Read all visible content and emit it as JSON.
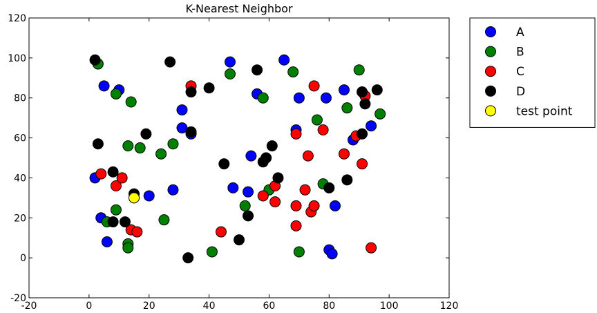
{
  "chart_data": {
    "type": "scatter",
    "title": "K-Nearest Neighbor",
    "xlabel": "",
    "ylabel": "",
    "xlim": [
      -20,
      120
    ],
    "ylim": [
      -20,
      120
    ],
    "xticks": [
      -20,
      0,
      20,
      40,
      60,
      80,
      100,
      120
    ],
    "yticks": [
      -20,
      0,
      20,
      40,
      60,
      80,
      100,
      120
    ],
    "grid": false,
    "legend_position": "outside-right-top",
    "series": [
      {
        "name": "A",
        "color": "#0000ff",
        "points": [
          [
            47,
            98
          ],
          [
            65,
            99
          ],
          [
            5,
            86
          ],
          [
            10,
            84
          ],
          [
            56,
            82
          ],
          [
            79,
            80
          ],
          [
            70,
            80
          ],
          [
            85,
            84
          ],
          [
            31,
            74
          ],
          [
            31,
            65
          ],
          [
            34,
            62
          ],
          [
            69,
            64
          ],
          [
            94,
            66
          ],
          [
            88,
            59
          ],
          [
            54,
            51
          ],
          [
            2,
            40
          ],
          [
            20,
            31
          ],
          [
            28,
            34
          ],
          [
            48,
            35
          ],
          [
            53,
            33
          ],
          [
            4,
            20
          ],
          [
            6,
            8
          ],
          [
            82,
            26
          ],
          [
            80,
            4
          ],
          [
            81,
            2
          ]
        ]
      },
      {
        "name": "B",
        "color": "#008000",
        "points": [
          [
            3,
            97
          ],
          [
            47,
            92
          ],
          [
            68,
            93
          ],
          [
            90,
            94
          ],
          [
            9,
            82
          ],
          [
            14,
            78
          ],
          [
            58,
            80
          ],
          [
            86,
            75
          ],
          [
            97,
            72
          ],
          [
            76,
            69
          ],
          [
            13,
            56
          ],
          [
            17,
            55
          ],
          [
            24,
            52
          ],
          [
            28,
            57
          ],
          [
            59,
            50
          ],
          [
            60,
            34
          ],
          [
            78,
            37
          ],
          [
            52,
            26
          ],
          [
            9,
            24
          ],
          [
            6,
            18
          ],
          [
            25,
            19
          ],
          [
            13,
            7
          ],
          [
            13,
            5
          ],
          [
            41,
            3
          ],
          [
            70,
            3
          ]
        ]
      },
      {
        "name": "C",
        "color": "#ff0000",
        "points": [
          [
            34,
            86
          ],
          [
            75,
            86
          ],
          [
            92,
            81
          ],
          [
            89,
            61
          ],
          [
            78,
            64
          ],
          [
            69,
            62
          ],
          [
            73,
            51
          ],
          [
            85,
            52
          ],
          [
            91,
            47
          ],
          [
            4,
            42
          ],
          [
            9,
            36
          ],
          [
            11,
            40
          ],
          [
            62,
            36
          ],
          [
            58,
            31
          ],
          [
            62,
            28
          ],
          [
            72,
            34
          ],
          [
            69,
            26
          ],
          [
            74,
            23
          ],
          [
            75,
            26
          ],
          [
            69,
            16
          ],
          [
            14,
            14
          ],
          [
            16,
            13
          ],
          [
            44,
            13
          ],
          [
            94,
            5
          ]
        ]
      },
      {
        "name": "D",
        "color": "#000000",
        "points": [
          [
            2,
            99
          ],
          [
            27,
            98
          ],
          [
            56,
            94
          ],
          [
            34,
            83
          ],
          [
            40,
            85
          ],
          [
            91,
            83
          ],
          [
            92,
            77
          ],
          [
            96,
            84
          ],
          [
            3,
            57
          ],
          [
            19,
            62
          ],
          [
            34,
            63
          ],
          [
            61,
            56
          ],
          [
            91,
            62
          ],
          [
            45,
            47
          ],
          [
            58,
            48
          ],
          [
            59,
            50
          ],
          [
            63,
            40
          ],
          [
            86,
            39
          ],
          [
            80,
            35
          ],
          [
            8,
            43
          ],
          [
            15,
            32
          ],
          [
            8,
            18
          ],
          [
            12,
            18
          ],
          [
            53,
            21
          ],
          [
            50,
            9
          ],
          [
            33,
            0
          ]
        ]
      },
      {
        "name": "test point",
        "color": "#ffff00",
        "points": [
          [
            15,
            30
          ]
        ]
      }
    ]
  }
}
